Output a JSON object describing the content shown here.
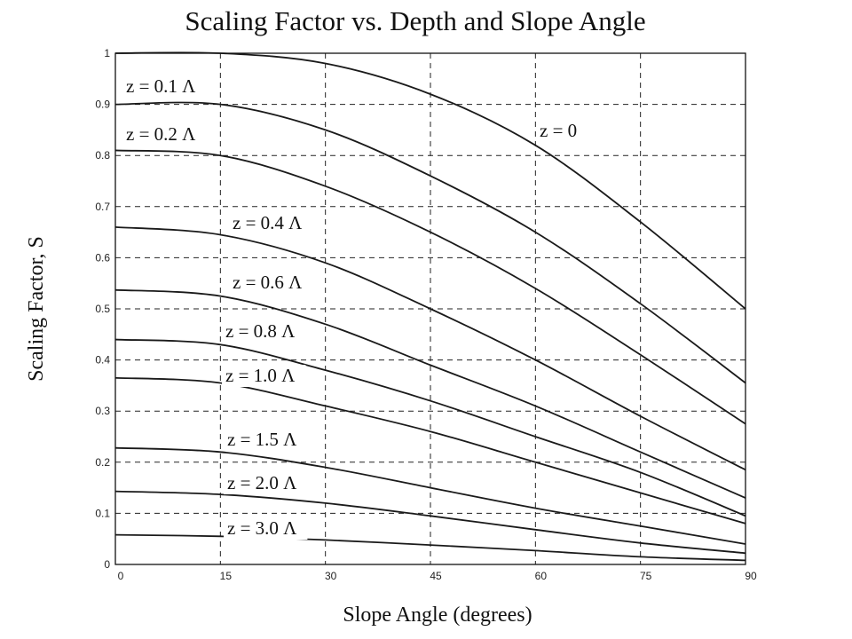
{
  "chart_data": {
    "type": "line",
    "title": "Scaling Factor vs. Depth and Slope Angle",
    "xlabel": "Slope Angle (degrees)",
    "ylabel": "Scaling Factor, S",
    "xlim": [
      0,
      90
    ],
    "ylim": [
      0,
      1
    ],
    "xticks": [
      0,
      15,
      30,
      45,
      60,
      75,
      90
    ],
    "xtick_labels": [
      "0",
      "15",
      "30",
      "45",
      "60",
      "75",
      "90"
    ],
    "yticks": [
      0,
      0.1,
      0.2,
      0.3,
      0.4,
      0.5,
      0.6,
      0.7,
      0.8,
      0.9,
      1
    ],
    "ytick_labels": [
      "0",
      "0.1",
      "0.2",
      "0.3",
      "0.4",
      "0.5",
      "0.6",
      "0.7",
      "0.8",
      "0.9",
      "1"
    ],
    "grid": true,
    "x": [
      0,
      15,
      30,
      45,
      60,
      75,
      90
    ],
    "series": [
      {
        "name": "z = 0",
        "values": [
          1.0,
          1.0,
          0.98,
          0.92,
          0.82,
          0.67,
          0.5
        ]
      },
      {
        "name": "z = 0.1 Λ",
        "values": [
          0.9,
          0.9,
          0.85,
          0.76,
          0.65,
          0.51,
          0.355
        ]
      },
      {
        "name": "z = 0.2 Λ",
        "values": [
          0.81,
          0.8,
          0.74,
          0.65,
          0.54,
          0.41,
          0.275
        ]
      },
      {
        "name": "z = 0.4 Λ",
        "values": [
          0.66,
          0.645,
          0.59,
          0.5,
          0.4,
          0.29,
          0.185
        ]
      },
      {
        "name": "z = 0.6 Λ",
        "values": [
          0.537,
          0.525,
          0.47,
          0.39,
          0.31,
          0.22,
          0.13
        ]
      },
      {
        "name": "z = 0.8 Λ",
        "values": [
          0.44,
          0.43,
          0.38,
          0.32,
          0.25,
          0.18,
          0.095
        ]
      },
      {
        "name": "z = 1.0 Λ",
        "values": [
          0.365,
          0.355,
          0.31,
          0.26,
          0.2,
          0.14,
          0.08
        ]
      },
      {
        "name": "z = 1.5 Λ",
        "values": [
          0.228,
          0.22,
          0.19,
          0.15,
          0.11,
          0.075,
          0.04
        ]
      },
      {
        "name": "z = 2.0 Λ",
        "values": [
          0.143,
          0.137,
          0.12,
          0.095,
          0.068,
          0.042,
          0.022
        ]
      },
      {
        "name": "z = 3.0 Λ",
        "values": [
          0.058,
          0.055,
          0.048,
          0.038,
          0.027,
          0.015,
          0.008
        ]
      }
    ]
  }
}
